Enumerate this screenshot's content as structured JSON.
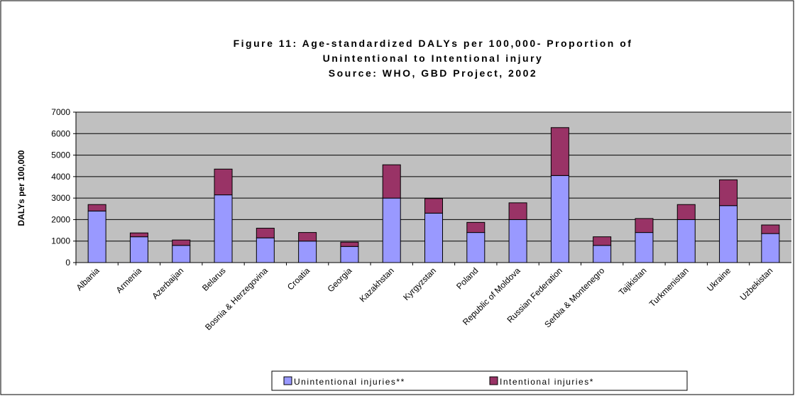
{
  "chart_data": {
    "type": "stacked_bar",
    "title_lines": [
      "Figure 11: Age-standardized DALYs per 100,000- Proportion of",
      "Unintentional to Intentional injury",
      "Source: WHO, GBD Project, 2002"
    ],
    "y_label": "DALYs per 100,000",
    "categories": [
      "Albania",
      "Armenia",
      "Azerbaijan",
      "Belarus",
      "Bosnia & Herzegovina",
      "Croatia",
      "Georgia",
      "Kazakhstan",
      "Kyrgyzstan",
      "Poland",
      "Republic of Moldova",
      "Russian Federation",
      "Serbia & Montenegro",
      "Tajikistan",
      "Turkmenistan",
      "Ukraine",
      "Uzbekistan"
    ],
    "series": [
      {
        "name": "Unintentional injuries**",
        "color": "#9999ff",
        "values": [
          2400,
          1200,
          800,
          3150,
          1150,
          1000,
          750,
          3000,
          2300,
          1400,
          2000,
          4050,
          800,
          1400,
          2000,
          2650,
          1350
        ]
      },
      {
        "name": "Intentional injuries*",
        "color": "#993366",
        "values": [
          300,
          180,
          250,
          1200,
          450,
          400,
          200,
          1550,
          680,
          470,
          780,
          2230,
          400,
          650,
          700,
          1200,
          400
        ]
      }
    ],
    "ylim": [
      0,
      7000
    ],
    "yticks": [
      0,
      1000,
      2000,
      3000,
      4000,
      5000,
      6000,
      7000
    ],
    "grid": true,
    "legend": "bottom"
  }
}
